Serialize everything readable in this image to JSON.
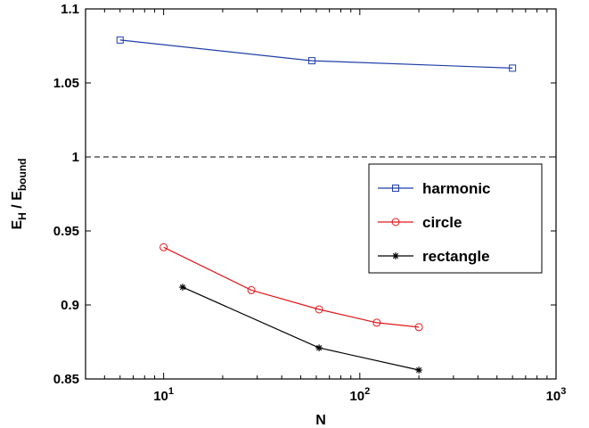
{
  "chart_data": {
    "type": "line",
    "xlabel": "N",
    "ylabel_main": "E",
    "ylabel_sub1": "H",
    "ylabel_mid": " / E",
    "ylabel_sub2": "bound",
    "xscale": "log",
    "xlim": [
      4,
      1000
    ],
    "ylim": [
      0.85,
      1.1
    ],
    "x_ticks": [
      {
        "value": 10,
        "base": "10",
        "exp": "1"
      },
      {
        "value": 100,
        "base": "10",
        "exp": "2"
      },
      {
        "value": 1000,
        "base": "10",
        "exp": "3"
      }
    ],
    "y_ticks": [
      {
        "value": 0.85,
        "label": "0.85"
      },
      {
        "value": 0.9,
        "label": "0.9"
      },
      {
        "value": 0.95,
        "label": "0.95"
      },
      {
        "value": 1.0,
        "label": "1"
      },
      {
        "value": 1.05,
        "label": "1.05"
      },
      {
        "value": 1.1,
        "label": "1.1"
      }
    ],
    "reference_line": {
      "y": 1.0,
      "style": "dashed"
    },
    "grid": false,
    "legend_position": "right",
    "series": [
      {
        "name": "harmonic",
        "color": "#1f3fa8",
        "marker": "square",
        "x": [
          6,
          57,
          600
        ],
        "y": [
          1.079,
          1.065,
          1.06
        ]
      },
      {
        "name": "circle",
        "color": "#e0181c",
        "marker": "circle",
        "x": [
          10,
          28,
          62,
          122,
          200
        ],
        "y": [
          0.939,
          0.91,
          0.897,
          0.888,
          0.885
        ]
      },
      {
        "name": "rectangle",
        "color": "#000000",
        "marker": "star",
        "x": [
          12.5,
          62,
          200
        ],
        "y": [
          0.912,
          0.871,
          0.856
        ]
      }
    ]
  }
}
